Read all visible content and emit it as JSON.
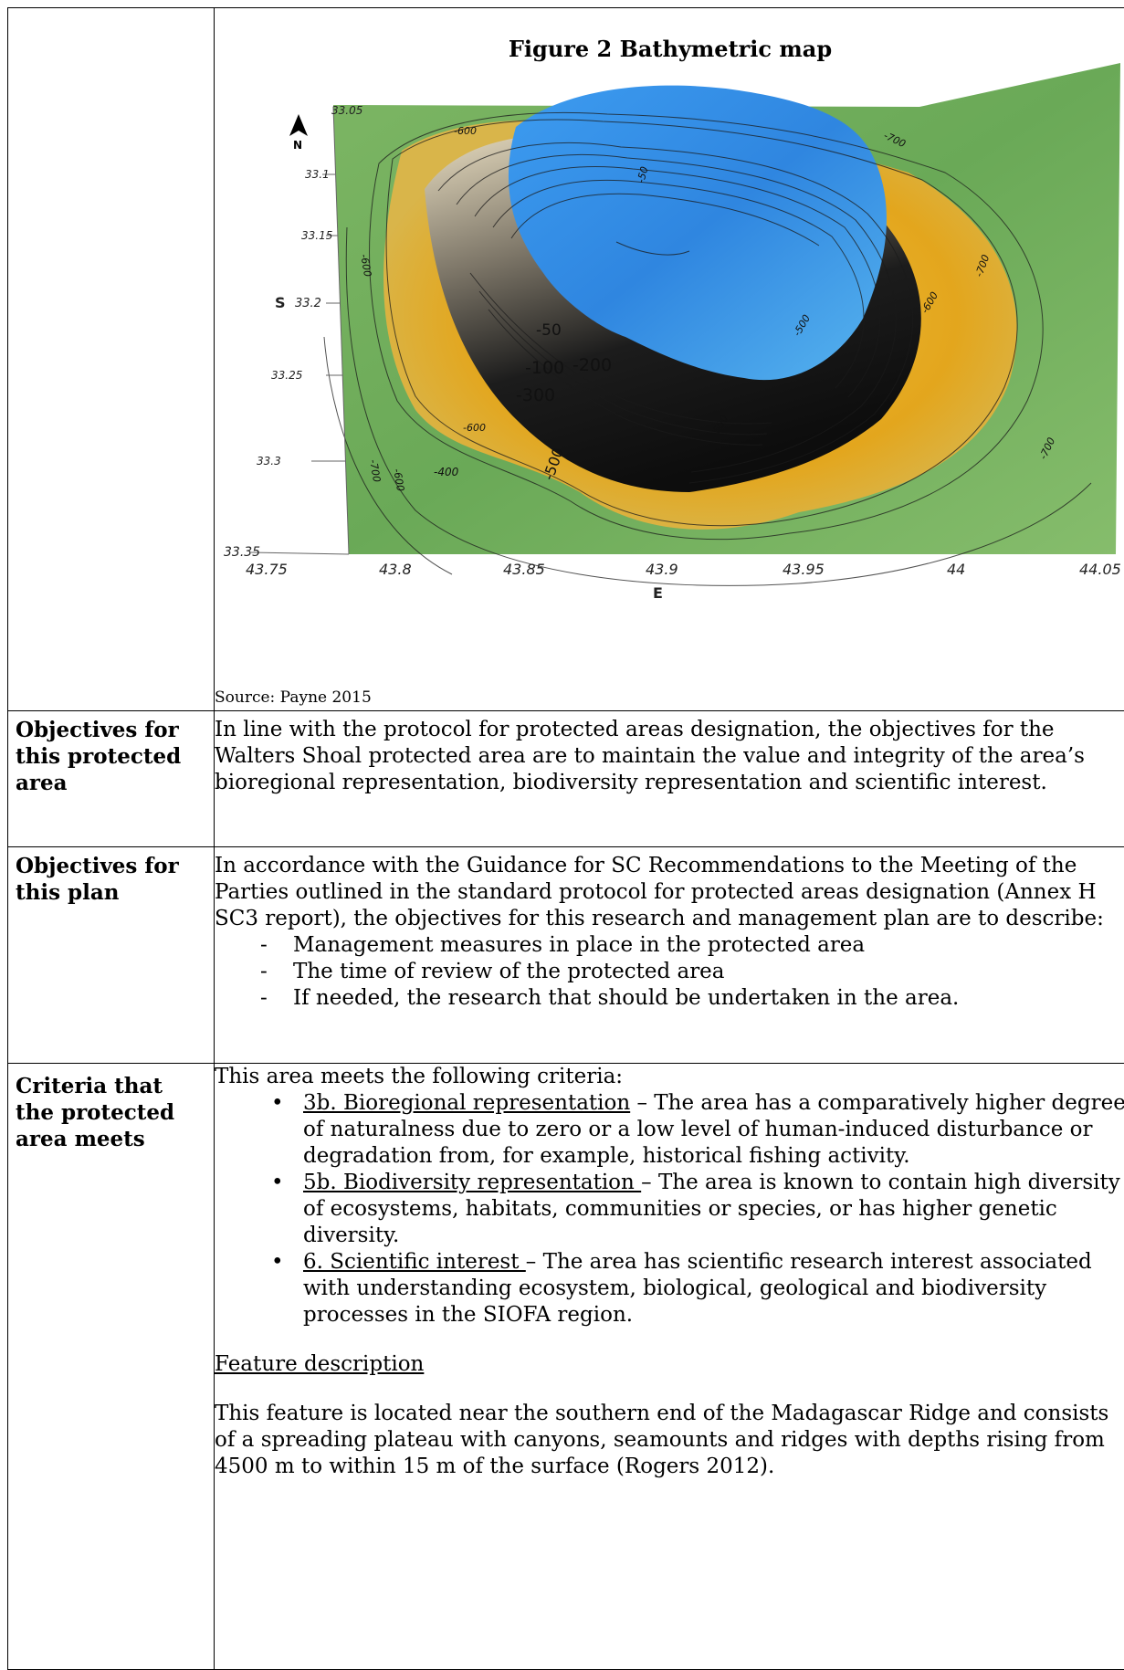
{
  "figure": {
    "title": "Figure 2 Bathymetric map",
    "source": "Source: Payne 2015",
    "north_label": "N",
    "lat_axis_label": "S",
    "lon_axis_label": "E",
    "lat_ticks": [
      "33.05",
      "33.1",
      "33.15",
      "33.2",
      "33.25",
      "33.3",
      "33.35"
    ],
    "lon_ticks": [
      "43.75",
      "43.8",
      "43.85",
      "43.9",
      "43.95",
      "44",
      "44.05"
    ],
    "contour_labels": [
      "-600",
      "-700",
      "-600",
      "-700",
      "-600",
      "-500",
      "-50",
      "-100",
      "-200",
      "-300",
      "-400",
      "-500",
      "-600",
      "-600",
      "-700",
      "-700",
      "-600",
      "-50"
    ]
  },
  "rows": [
    {
      "label": "Objectives for this protected area",
      "text": "In line with the protocol for protected areas designation, the objectives for the Walters Shoal protected area are to maintain the value and integrity of the area’s bioregional representation, biodiversity representation and scientific interest."
    },
    {
      "label": "Objectives for this plan",
      "intro": "In accordance with the Guidance for SC Recommendations to the Meeting of the Parties outlined in the standard protocol for protected areas designation (Annex H SC3 report), the objectives for this research and management plan are to describe:",
      "items": [
        "Management measures in place in the protected area",
        "The time of review of the protected area",
        "If needed, the research that should be undertaken in the area."
      ],
      "marker": "-"
    },
    {
      "label": "Criteria that the protected area meets",
      "intro": "This area meets the following criteria:",
      "bullet": "•",
      "criteria": [
        {
          "title": "3b. Bioregional representation",
          "text": " – The area has a comparatively higher degree of naturalness due to zero or a low level of human-induced disturbance or degradation from, for example, historical fishing activity."
        },
        {
          "title": "5b. Biodiversity representation ",
          "text": "– The area is known to contain high diversity of ecosystems, habitats, communities or species, or has higher genetic diversity."
        },
        {
          "title": "6. Scientific interest ",
          "text": "– The area has scientific research interest associated with understanding ecosystem, biological, geological and biodiversity processes in the SIOFA region."
        }
      ],
      "subheading": "Feature description",
      "description": "This feature is located near the southern end of the Madagascar Ridge and consists of a spreading plateau with canyons, seamounts and ridges with depths rising from 4500 m to within 15 m of the surface (Rogers 2012)."
    }
  ],
  "colors": {
    "deep_green": "#6fae5a",
    "slope_yellow": "#e6b020",
    "summit_blue": "#2f86e0",
    "steep_black": "#1e1e1e"
  }
}
